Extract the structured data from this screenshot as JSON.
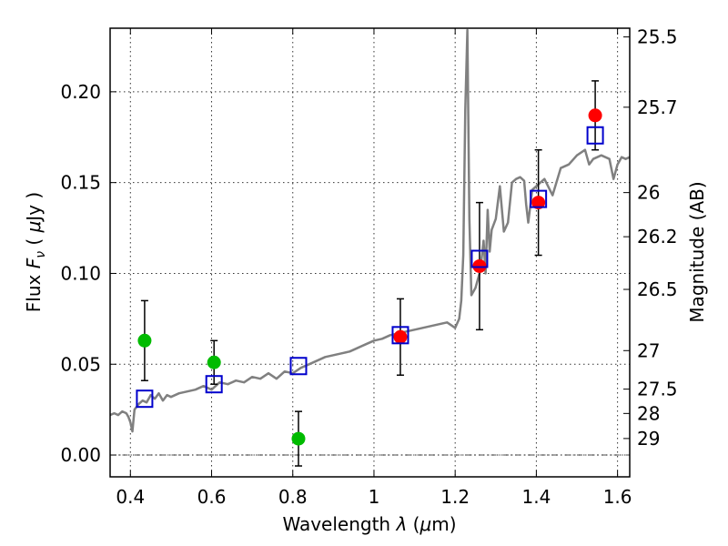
{
  "chart_data": {
    "type": "scatter",
    "xlabel": "Wavelength  λ (μm)",
    "ylabel": "Flux  Fν  ( μJy )",
    "right_ylabel": "Magnitude (AB)",
    "xlim": [
      0.35,
      1.63
    ],
    "ylim": [
      -0.012,
      0.235
    ],
    "x_ticks": [
      0.4,
      0.6,
      0.8,
      1.0,
      1.2,
      1.4,
      1.6
    ],
    "x_tick_labels": [
      "0.4",
      "0.6",
      "0.8",
      "1",
      "1.2",
      "1.4",
      "1.6"
    ],
    "y_ticks": [
      0.0,
      0.05,
      0.1,
      0.15,
      0.2
    ],
    "y_tick_labels": [
      "0.00",
      "0.05",
      "0.10",
      "0.15",
      "0.20"
    ],
    "right_ticks": [
      {
        "flux": 0.2302,
        "label": "25.5"
      },
      {
        "flux": 0.1915,
        "label": "25.7"
      },
      {
        "flux": 0.1445,
        "label": "26"
      },
      {
        "flux": 0.1202,
        "label": "26.2"
      },
      {
        "flux": 0.0912,
        "label": "26.5"
      },
      {
        "flux": 0.0575,
        "label": "27"
      },
      {
        "flux": 0.0363,
        "label": "27.5"
      },
      {
        "flux": 0.0229,
        "label": "28"
      },
      {
        "flux": 0.0091,
        "label": "29"
      }
    ],
    "grid": true,
    "zero_line": 0.0,
    "spectrum": {
      "color": "#808080",
      "x": [
        0.35,
        0.36,
        0.37,
        0.38,
        0.39,
        0.395,
        0.4,
        0.405,
        0.41,
        0.42,
        0.43,
        0.44,
        0.45,
        0.46,
        0.47,
        0.48,
        0.49,
        0.5,
        0.52,
        0.54,
        0.56,
        0.58,
        0.6,
        0.62,
        0.64,
        0.66,
        0.68,
        0.7,
        0.72,
        0.74,
        0.76,
        0.78,
        0.8,
        0.82,
        0.84,
        0.86,
        0.88,
        0.9,
        0.92,
        0.94,
        0.96,
        0.98,
        1.0,
        1.02,
        1.04,
        1.06,
        1.08,
        1.1,
        1.12,
        1.14,
        1.16,
        1.18,
        1.2,
        1.21,
        1.215,
        1.22,
        1.225,
        1.23,
        1.235,
        1.24,
        1.25,
        1.26,
        1.265,
        1.27,
        1.275,
        1.28,
        1.285,
        1.29,
        1.3,
        1.31,
        1.32,
        1.33,
        1.34,
        1.35,
        1.36,
        1.37,
        1.375,
        1.38,
        1.39,
        1.4,
        1.42,
        1.44,
        1.46,
        1.48,
        1.5,
        1.52,
        1.53,
        1.54,
        1.56,
        1.58,
        1.59,
        1.6,
        1.61,
        1.62,
        1.63
      ],
      "y": [
        0.022,
        0.023,
        0.022,
        0.024,
        0.023,
        0.021,
        0.018,
        0.013,
        0.025,
        0.028,
        0.03,
        0.029,
        0.033,
        0.031,
        0.034,
        0.03,
        0.033,
        0.032,
        0.034,
        0.035,
        0.036,
        0.038,
        0.036,
        0.04,
        0.039,
        0.041,
        0.04,
        0.043,
        0.042,
        0.045,
        0.042,
        0.046,
        0.045,
        0.048,
        0.05,
        0.052,
        0.054,
        0.055,
        0.056,
        0.057,
        0.059,
        0.061,
        0.063,
        0.064,
        0.066,
        0.067,
        0.068,
        0.069,
        0.07,
        0.071,
        0.072,
        0.073,
        0.07,
        0.075,
        0.085,
        0.11,
        0.19,
        0.234,
        0.13,
        0.088,
        0.092,
        0.1,
        0.108,
        0.118,
        0.1,
        0.135,
        0.112,
        0.124,
        0.13,
        0.148,
        0.123,
        0.128,
        0.15,
        0.152,
        0.153,
        0.151,
        0.138,
        0.128,
        0.146,
        0.148,
        0.152,
        0.143,
        0.158,
        0.16,
        0.165,
        0.168,
        0.16,
        0.163,
        0.165,
        0.163,
        0.152,
        0.16,
        0.164,
        0.163,
        0.164
      ]
    },
    "series": [
      {
        "marker": "circle",
        "color": "#00bb00",
        "points": [
          {
            "x": 0.435,
            "y": 0.063,
            "err": 0.022
          },
          {
            "x": 0.606,
            "y": 0.051,
            "err": 0.012
          },
          {
            "x": 0.814,
            "y": 0.009,
            "err": 0.015
          }
        ]
      },
      {
        "marker": "circle",
        "color": "#ff0000",
        "points": [
          {
            "x": 1.065,
            "y": 0.065,
            "err": 0.021
          },
          {
            "x": 1.26,
            "y": 0.104,
            "err": 0.035
          },
          {
            "x": 1.405,
            "y": 0.139,
            "err": 0.029
          },
          {
            "x": 1.545,
            "y": 0.187,
            "err": 0.019
          }
        ]
      },
      {
        "marker": "square-open",
        "color": "#0000cc",
        "points": [
          {
            "x": 0.435,
            "y": 0.031
          },
          {
            "x": 0.606,
            "y": 0.039
          },
          {
            "x": 0.814,
            "y": 0.049
          },
          {
            "x": 1.065,
            "y": 0.066
          },
          {
            "x": 1.26,
            "y": 0.108
          },
          {
            "x": 1.405,
            "y": 0.141
          },
          {
            "x": 1.545,
            "y": 0.176
          }
        ]
      }
    ]
  }
}
